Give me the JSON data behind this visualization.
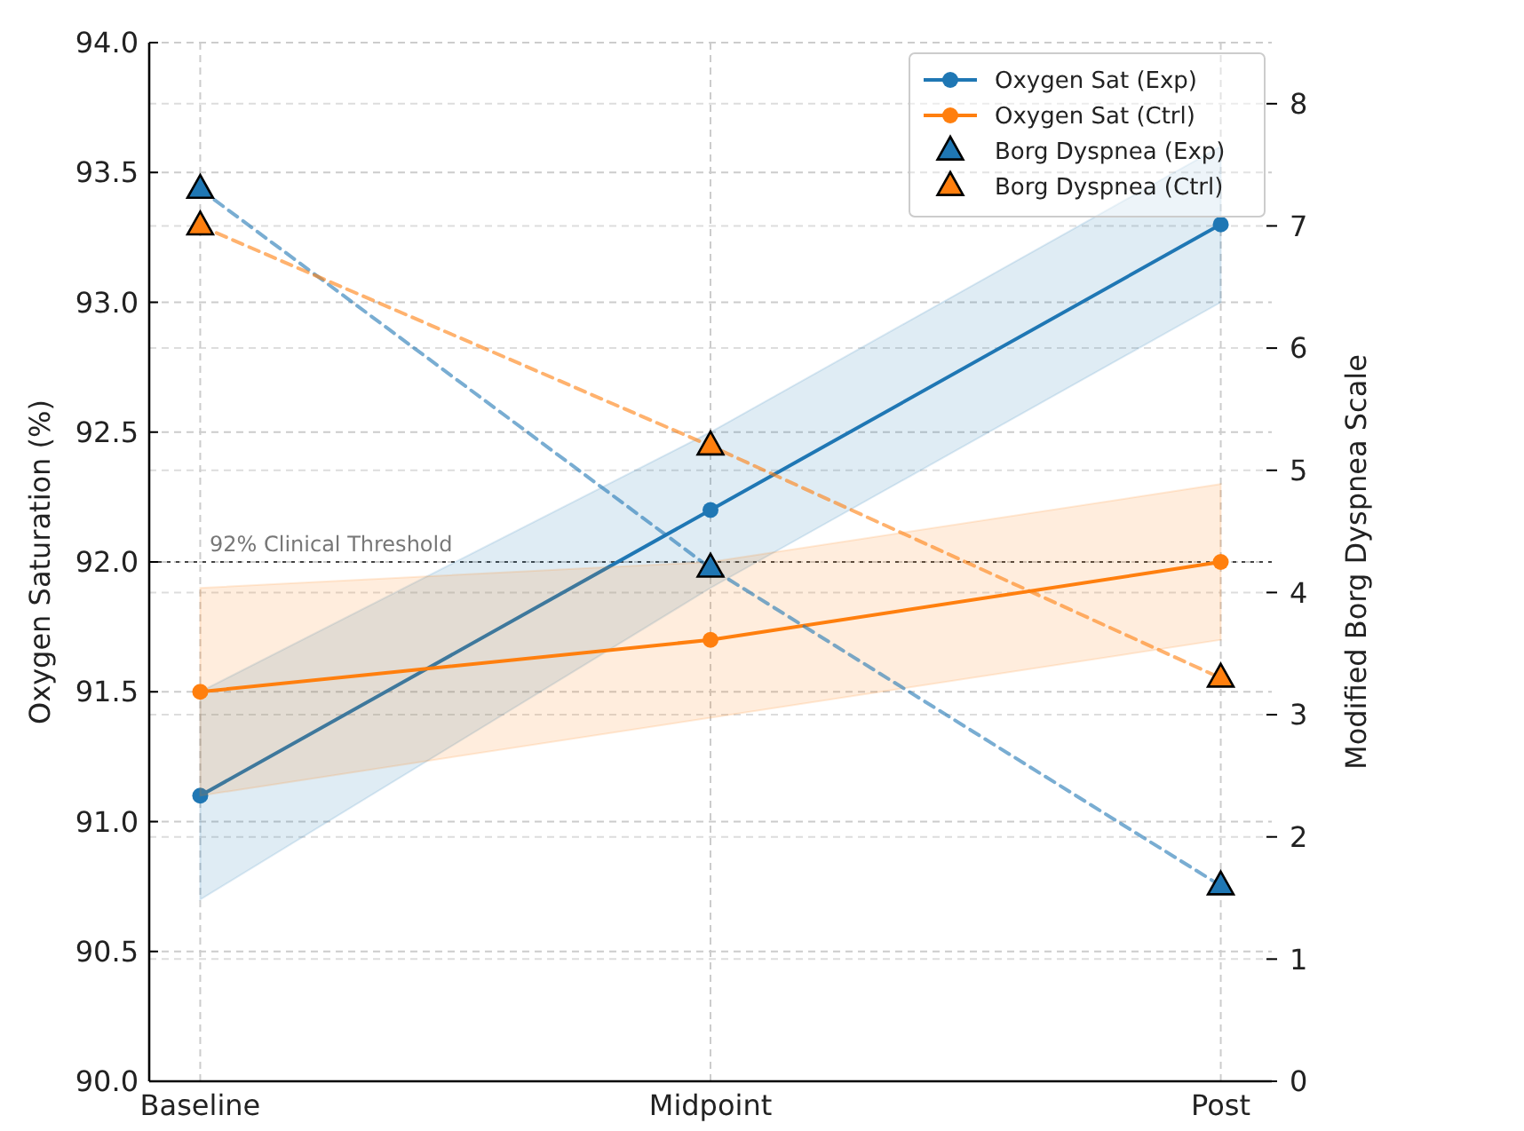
{
  "chart_data": {
    "type": "line",
    "categories": [
      "Baseline",
      "Midpoint",
      "Post"
    ],
    "ylabel": "Oxygen Saturation (%)",
    "y2label": "Modified Borg Dyspnea Scale",
    "ylim": [
      90,
      94
    ],
    "yticks": [
      {
        "value": 90,
        "label": "90.0"
      },
      {
        "value": 90.5,
        "label": "90.5"
      },
      {
        "value": 91,
        "label": "91.0"
      },
      {
        "value": 91.5,
        "label": "91.5"
      },
      {
        "value": 92,
        "label": "92.0"
      },
      {
        "value": 92.5,
        "label": "92.5"
      },
      {
        "value": 93,
        "label": "93.0"
      },
      {
        "value": 93.5,
        "label": "93.5"
      },
      {
        "value": 94,
        "label": "94.0"
      }
    ],
    "y2lim": [
      0,
      8.5
    ],
    "y2ticks": [
      0,
      1,
      2,
      3,
      4,
      5,
      6,
      7,
      8
    ],
    "grid": true,
    "legend": "top right",
    "series": [
      {
        "name": "Oxygen Sat (Exp)",
        "color": "#1f77b4",
        "values": [
          91.1,
          92.2,
          93.3
        ],
        "lower": [
          90.7,
          91.9,
          93.0
        ],
        "upper": [
          91.5,
          92.5,
          93.6
        ],
        "marker": "circle",
        "line_style": "solid"
      },
      {
        "name": "Oxygen Sat (Ctrl)",
        "color": "#ff7f0e",
        "values": [
          91.5,
          91.7,
          92.0
        ],
        "lower": [
          91.1,
          91.4,
          91.7
        ],
        "upper": [
          91.9,
          92.0,
          92.3
        ],
        "marker": "circle",
        "line_style": "solid"
      },
      {
        "name": "Borg Dyspnea (Exp)",
        "color": "#1f77b4",
        "values": [
          7.3,
          4.2,
          1.6
        ],
        "axis": "y2",
        "marker": "triangle",
        "line_style": "dashed"
      },
      {
        "name": "Borg Dyspnea (Ctrl)",
        "color": "#ff7f0e",
        "values": [
          7.0,
          5.2,
          3.3
        ],
        "axis": "y2",
        "marker": "triangle",
        "line_style": "dashed"
      }
    ],
    "ref_lines": [
      {
        "axis": "y",
        "value": 92,
        "label": "92% Clinical Threshold",
        "color": "#444444",
        "line_style": "dotted"
      }
    ]
  }
}
